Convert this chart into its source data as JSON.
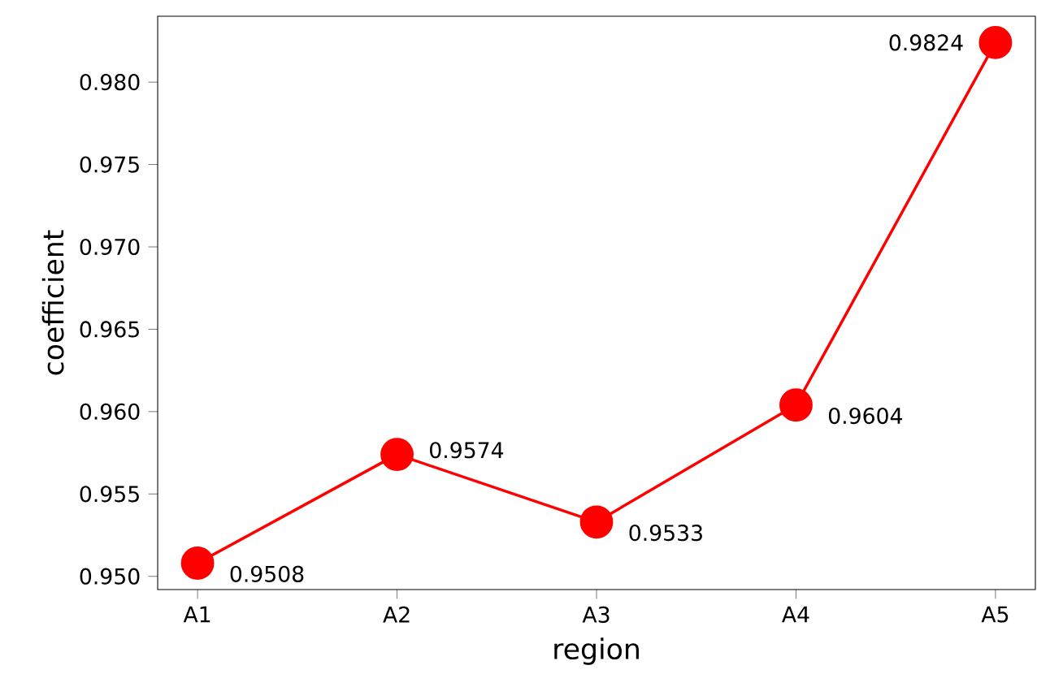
{
  "chart_data": {
    "type": "line",
    "xlabel": "region",
    "ylabel": "coefficient",
    "categories": [
      "A1",
      "A2",
      "A3",
      "A4",
      "A5"
    ],
    "values": [
      0.9508,
      0.9574,
      0.9533,
      0.9604,
      0.9824
    ],
    "color": "#ff0000",
    "marker": "circle",
    "line_style": "solid",
    "data_labels": true,
    "ylim": [
      0.9492,
      0.984
    ],
    "yticks": [
      {
        "value": 0.95,
        "label": "0.950"
      },
      0.955,
      {
        "value": 0.96,
        "label": "0.960"
      },
      0.965,
      {
        "value": 0.97,
        "label": "0.970"
      },
      0.975,
      {
        "value": 0.98,
        "label": "0.980"
      }
    ]
  }
}
